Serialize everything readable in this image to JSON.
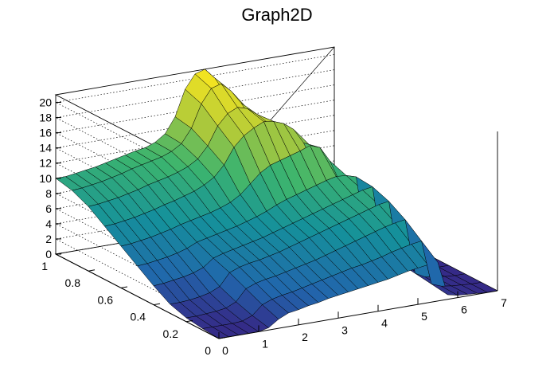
{
  "window": {
    "title": "Graph2D"
  },
  "chart_data": {
    "type": "surface3d",
    "title": "Graph2D",
    "xlabel": "",
    "ylabel": "",
    "zlabel": "",
    "x_range": [
      0,
      7
    ],
    "y_range": [
      0,
      1
    ],
    "z_range": [
      0,
      21
    ],
    "x_ticks": [
      "0",
      "1",
      "2",
      "3",
      "4",
      "5",
      "6",
      "7"
    ],
    "y_ticks": [
      "0",
      "0.2",
      "0.4",
      "0.6",
      "0.8",
      "1"
    ],
    "z_ticks": [
      "0",
      "2",
      "4",
      "6",
      "8",
      "10",
      "12",
      "14",
      "16",
      "18",
      "20"
    ],
    "grid": true,
    "colormap": "viridis",
    "x_grid": [
      0,
      0.25,
      0.5,
      0.75,
      1,
      1.25,
      1.5,
      1.75,
      2,
      2.25,
      2.5,
      2.75,
      3,
      3.25,
      3.5,
      3.75,
      4,
      4.25,
      4.5,
      4.75,
      5,
      5.25,
      5.5,
      5.75,
      6,
      6.25,
      6.5,
      6.75,
      7
    ],
    "y_grid": [
      0,
      0.1,
      0.2,
      0.3,
      0.4,
      0.5,
      0.6,
      0.7,
      0.8,
      0.9,
      1
    ],
    "z_values": [
      [
        0,
        0,
        0,
        0,
        0,
        0.3,
        1.2,
        1.8,
        2.0,
        2.3,
        2.5,
        2.8,
        3.0,
        3.2,
        3.4,
        3.6,
        3.8,
        4.0,
        4.3,
        4.6,
        4.8,
        5.0,
        5.1,
        0.6,
        0.3,
        0.2,
        0.1,
        0.0,
        0.0
      ],
      [
        0.2,
        0.2,
        0.2,
        0.2,
        0.3,
        0.8,
        2.0,
        2.5,
        2.8,
        3.0,
        3.3,
        3.6,
        3.9,
        4.2,
        4.5,
        4.8,
        5.0,
        5.3,
        5.6,
        6.0,
        6.3,
        6.6,
        6.8,
        0.9,
        0.4,
        0.2,
        0.1,
        0.0,
        0.0
      ],
      [
        0.5,
        0.5,
        0.6,
        0.7,
        0.9,
        1.5,
        3.0,
        3.5,
        3.8,
        4.0,
        4.3,
        4.6,
        4.9,
        5.2,
        5.6,
        6.0,
        6.4,
        6.8,
        7.2,
        7.6,
        8.0,
        8.3,
        8.5,
        1.2,
        0.5,
        0.3,
        0.1,
        0.0,
        0.0
      ],
      [
        1.2,
        1.2,
        1.3,
        1.5,
        1.8,
        2.4,
        4.0,
        4.5,
        4.8,
        5.0,
        5.3,
        5.6,
        6.0,
        6.4,
        6.8,
        7.2,
        7.6,
        8.0,
        8.4,
        8.8,
        9.2,
        9.6,
        9.8,
        1.5,
        0.6,
        0.3,
        0.1,
        0.0,
        0.0
      ],
      [
        2.5,
        2.6,
        2.8,
        3.0,
        3.3,
        3.8,
        4.8,
        5.2,
        5.5,
        5.8,
        6.1,
        6.4,
        6.8,
        7.2,
        7.6,
        8.0,
        8.4,
        8.8,
        9.2,
        9.6,
        10.0,
        10.4,
        10.6,
        1.8,
        0.7,
        0.3,
        0.1,
        0.0,
        0.0
      ],
      [
        4.0,
        4.1,
        4.3,
        4.5,
        4.8,
        5.2,
        5.8,
        6.1,
        6.4,
        6.7,
        7.0,
        7.4,
        7.8,
        8.3,
        8.9,
        9.4,
        9.8,
        10.2,
        10.6,
        11.0,
        11.3,
        11.2,
        10.8,
        2.0,
        0.8,
        0.4,
        0.1,
        0.0,
        0.0
      ],
      [
        5.5,
        5.6,
        5.8,
        6.0,
        6.3,
        6.6,
        7.0,
        7.3,
        7.6,
        7.9,
        8.3,
        8.8,
        9.6,
        10.8,
        12.0,
        12.8,
        13.2,
        13.6,
        14.0,
        14.5,
        14.0,
        12.0,
        9.0,
        2.2,
        0.9,
        0.4,
        0.1,
        0.0,
        0.0
      ],
      [
        7.0,
        7.1,
        7.3,
        7.5,
        7.8,
        8.1,
        8.5,
        8.8,
        9.2,
        9.6,
        10.2,
        11.0,
        12.4,
        14.5,
        15.8,
        16.6,
        17.2,
        17.0,
        16.5,
        15.5,
        13.5,
        10.5,
        7.5,
        2.3,
        1.0,
        0.4,
        0.1,
        0.0,
        0.0
      ],
      [
        8.5,
        8.6,
        8.8,
        9.0,
        9.3,
        9.6,
        10.0,
        10.3,
        10.6,
        11.0,
        11.5,
        12.3,
        13.8,
        16.2,
        17.6,
        18.2,
        17.8,
        16.8,
        15.5,
        13.8,
        11.8,
        9.2,
        6.5,
        2.2,
        0.9,
        0.4,
        0.1,
        0.0,
        0.0
      ],
      [
        9.5,
        9.6,
        9.8,
        10.0,
        10.3,
        10.6,
        11.0,
        11.3,
        11.6,
        11.9,
        12.4,
        13.2,
        15.0,
        18.0,
        19.8,
        20.2,
        19.0,
        17.2,
        15.0,
        12.8,
        10.5,
        8.0,
        5.5,
        2.0,
        0.8,
        0.3,
        0.1,
        0.0,
        0.0
      ],
      [
        10.0,
        10.0,
        10.2,
        10.4,
        10.6,
        10.9,
        11.2,
        11.5,
        11.8,
        12.0,
        12.5,
        13.4,
        15.4,
        18.8,
        20.6,
        21.0,
        19.6,
        17.4,
        14.8,
        12.2,
        9.8,
        7.4,
        5.0,
        1.8,
        0.7,
        0.3,
        0.1,
        0.0,
        0.0
      ]
    ]
  }
}
